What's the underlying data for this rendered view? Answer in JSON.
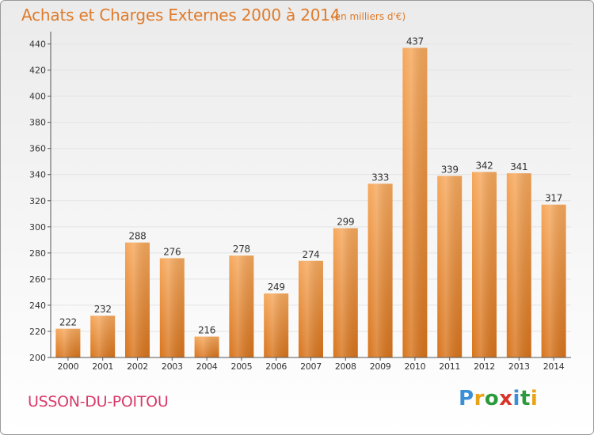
{
  "title": "Achats et Charges Externes 2000 à 2014",
  "subtitle": "(en milliers d'€)",
  "commune": "USSON-DU-POITOU",
  "logo": {
    "letters": [
      "P",
      "r",
      "o",
      "x",
      "i",
      "t",
      "i"
    ],
    "colors": [
      "#3b8fd6",
      "#e8a317",
      "#2a9a3c",
      "#d8352a",
      "#3b8fd6",
      "#2a9a3c",
      "#e8a317"
    ]
  },
  "chart_data": {
    "type": "bar",
    "categories": [
      "2000",
      "2001",
      "2002",
      "2003",
      "2004",
      "2005",
      "2006",
      "2007",
      "2008",
      "2009",
      "2010",
      "2011",
      "2012",
      "2013",
      "2014"
    ],
    "values": [
      222,
      232,
      288,
      276,
      216,
      278,
      249,
      274,
      299,
      333,
      437,
      339,
      342,
      341,
      317
    ],
    "data_labels": [
      "222",
      "232",
      "288",
      "276",
      "216",
      "278",
      "249",
      "274",
      "299",
      "333",
      "437",
      "339",
      "342",
      "341",
      "317"
    ],
    "y_ticks": [
      "200",
      "220",
      "240",
      "260",
      "280",
      "300",
      "320",
      "340",
      "360",
      "380",
      "400",
      "420",
      "440"
    ],
    "ylim": [
      200,
      447
    ],
    "grid": true,
    "colors": {
      "bar_light": "#f6a85c",
      "bar_dark": "#d8741c",
      "grid": "#e3e3e3",
      "axis": "#555555"
    }
  }
}
